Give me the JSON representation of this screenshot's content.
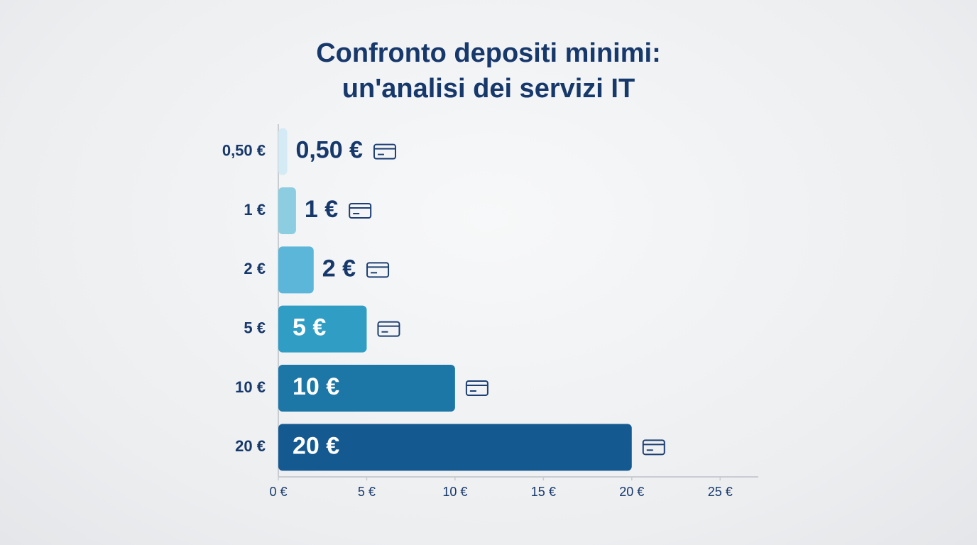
{
  "chart_data": {
    "type": "hbar",
    "title": [
      "Confronto depositi minimi:",
      "un'analisi dei servizi IT"
    ],
    "categories": [
      "0,50 €",
      "1 €",
      "2 €",
      "5 €",
      "10 €",
      "20 €"
    ],
    "values": [
      0.5,
      1,
      2,
      5,
      10,
      20
    ],
    "value_labels": [
      "0,50 €",
      "1 €",
      "2 €",
      "5 €",
      "10 €",
      "20 €"
    ],
    "colors": [
      "#d4eaf4",
      "#8ccde2",
      "#5cb6d9",
      "#2f9dc4",
      "#1c77a7",
      "#155991"
    ],
    "xlim": [
      0,
      27
    ],
    "xticks": [
      {
        "value": 0,
        "label": "0 €"
      },
      {
        "value": 5,
        "label": "5 €"
      },
      {
        "value": 10,
        "label": "10 €"
      },
      {
        "value": 15,
        "label": "15 €"
      },
      {
        "value": 20,
        "label": "20 €"
      },
      {
        "value": 25,
        "label": "25 €"
      }
    ],
    "grid": false
  }
}
